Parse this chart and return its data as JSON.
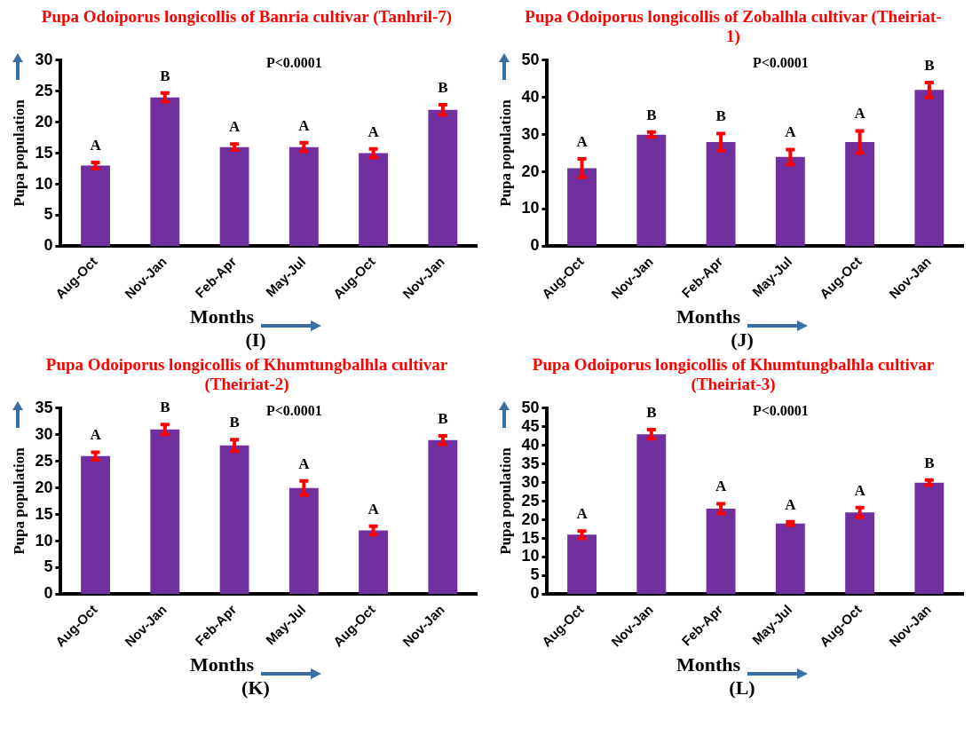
{
  "chart_data": [
    {
      "type": "bar",
      "title": "Pupa Odoiporus longicollis of Banria cultivar (Tanhril-7)",
      "xlabel": "Months",
      "ylabel": "Pupa population",
      "categories": [
        "Aug-Oct",
        "Nov-Jan",
        "Feb-Apr",
        "May-Jul",
        "Aug-Oct",
        "Nov-Jan"
      ],
      "color": "#7030a0",
      "values": [
        13,
        24,
        16,
        16,
        15,
        22
      ],
      "errors": [
        0.5,
        0.7,
        0.5,
        0.7,
        0.7,
        0.8
      ],
      "value_labels": [
        "A",
        "B",
        "A",
        "A",
        "A",
        "B"
      ],
      "ylim": [
        0,
        30
      ],
      "yticks": [
        0,
        5,
        10,
        15,
        20,
        25,
        30
      ],
      "grid": false,
      "annotations": [
        "P<0.0001",
        "(I)"
      ]
    },
    {
      "type": "bar",
      "title": "Pupa Odoiporus longicollis of Zobalhla cultivar (Theiriat-1)",
      "xlabel": "Months",
      "ylabel": "Pupa population",
      "categories": [
        "Aug-Oct",
        "Nov-Jan",
        "Feb-Apr",
        "May-Jul",
        "Aug-Oct",
        "Nov-Jan"
      ],
      "color": "#7030a0",
      "values": [
        21,
        30,
        28,
        24,
        28,
        42
      ],
      "errors": [
        2.5,
        0.7,
        2.3,
        2,
        3,
        2
      ],
      "value_labels": [
        "A",
        "B",
        "B",
        "A",
        "A",
        "B"
      ],
      "ylim": [
        0,
        50
      ],
      "yticks": [
        0,
        10,
        20,
        30,
        40,
        50
      ],
      "grid": false,
      "annotations": [
        "P<0.0001",
        "(J)"
      ]
    },
    {
      "type": "bar",
      "title": "Pupa Odoiporus longicollis of Khumtungbalhla cultivar (Theiriat-2)",
      "xlabel": "Months",
      "ylabel": "Pupa population",
      "categories": [
        "Aug-Oct",
        "Nov-Jan",
        "Feb-Apr",
        "May-Jul",
        "Aug-Oct",
        "Nov-Jan"
      ],
      "color": "#7030a0",
      "values": [
        26,
        31,
        28,
        20,
        12,
        29
      ],
      "errors": [
        0.7,
        0.9,
        1.1,
        1.3,
        0.8,
        0.8
      ],
      "value_labels": [
        "A",
        "B",
        "B",
        "A",
        "A",
        "B"
      ],
      "ylim": [
        0,
        35
      ],
      "yticks": [
        0,
        5,
        10,
        15,
        20,
        25,
        30,
        35
      ],
      "grid": false,
      "annotations": [
        "P<0.0001",
        "(K)"
      ]
    },
    {
      "type": "bar",
      "title": "Pupa Odoiporus longicollis of Khumtungbalhla cultivar (Theiriat-3)",
      "xlabel": "Months",
      "ylabel": "Pupa population",
      "categories": [
        "Aug-Oct",
        "Nov-Jan",
        "Feb-Apr",
        "May-Jul",
        "Aug-Oct",
        "Nov-Jan"
      ],
      "color": "#7030a0",
      "values": [
        16,
        43,
        23,
        19,
        22,
        30
      ],
      "errors": [
        1,
        1.2,
        1.3,
        0.5,
        1.3,
        0.7
      ],
      "value_labels": [
        "A",
        "B",
        "A",
        "A",
        "A",
        "B"
      ],
      "ylim": [
        0,
        50
      ],
      "yticks": [
        0,
        5,
        10,
        15,
        20,
        25,
        30,
        35,
        40,
        45,
        50
      ],
      "grid": false,
      "annotations": [
        "P<0.0001",
        "(L)"
      ]
    }
  ]
}
